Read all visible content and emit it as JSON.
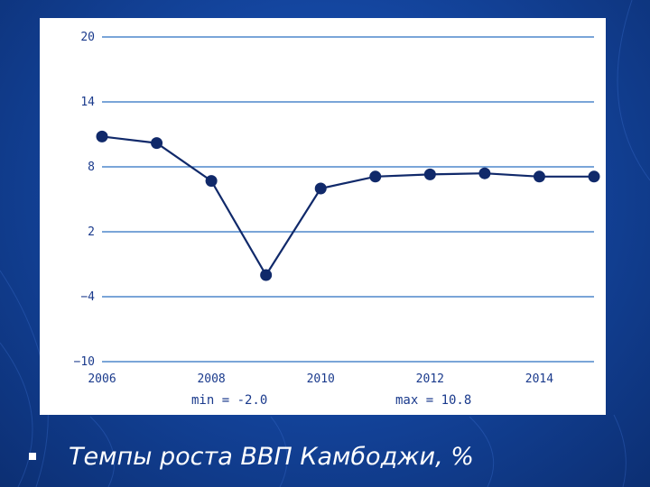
{
  "slide": {
    "caption": "Темпы роста  ВВП Камбоджи, %",
    "bullet_icon": "square-bullet"
  },
  "colors": {
    "line": "#10296a",
    "grid": "#2a6fc0",
    "axis_text": "#1a3a8c"
  },
  "chart_data": {
    "type": "line",
    "title": "",
    "xlabel": "",
    "ylabel": "",
    "xlim": [
      2006,
      2015
    ],
    "ylim": [
      -10,
      20
    ],
    "yticks": [
      20,
      14,
      8,
      2,
      -4,
      -10
    ],
    "xticks": [
      2006,
      2008,
      2010,
      2012,
      2014
    ],
    "grid": "horizontal",
    "x": [
      2006,
      2007,
      2008,
      2009,
      2010,
      2011,
      2012,
      2013,
      2014,
      2015
    ],
    "series": [
      {
        "values": [
          10.8,
          10.2,
          6.7,
          -2.0,
          6.0,
          7.1,
          7.3,
          7.4,
          7.1,
          7.1
        ]
      }
    ],
    "annotations": {
      "min": "min = -2.0",
      "max": "max = 10.8"
    }
  }
}
